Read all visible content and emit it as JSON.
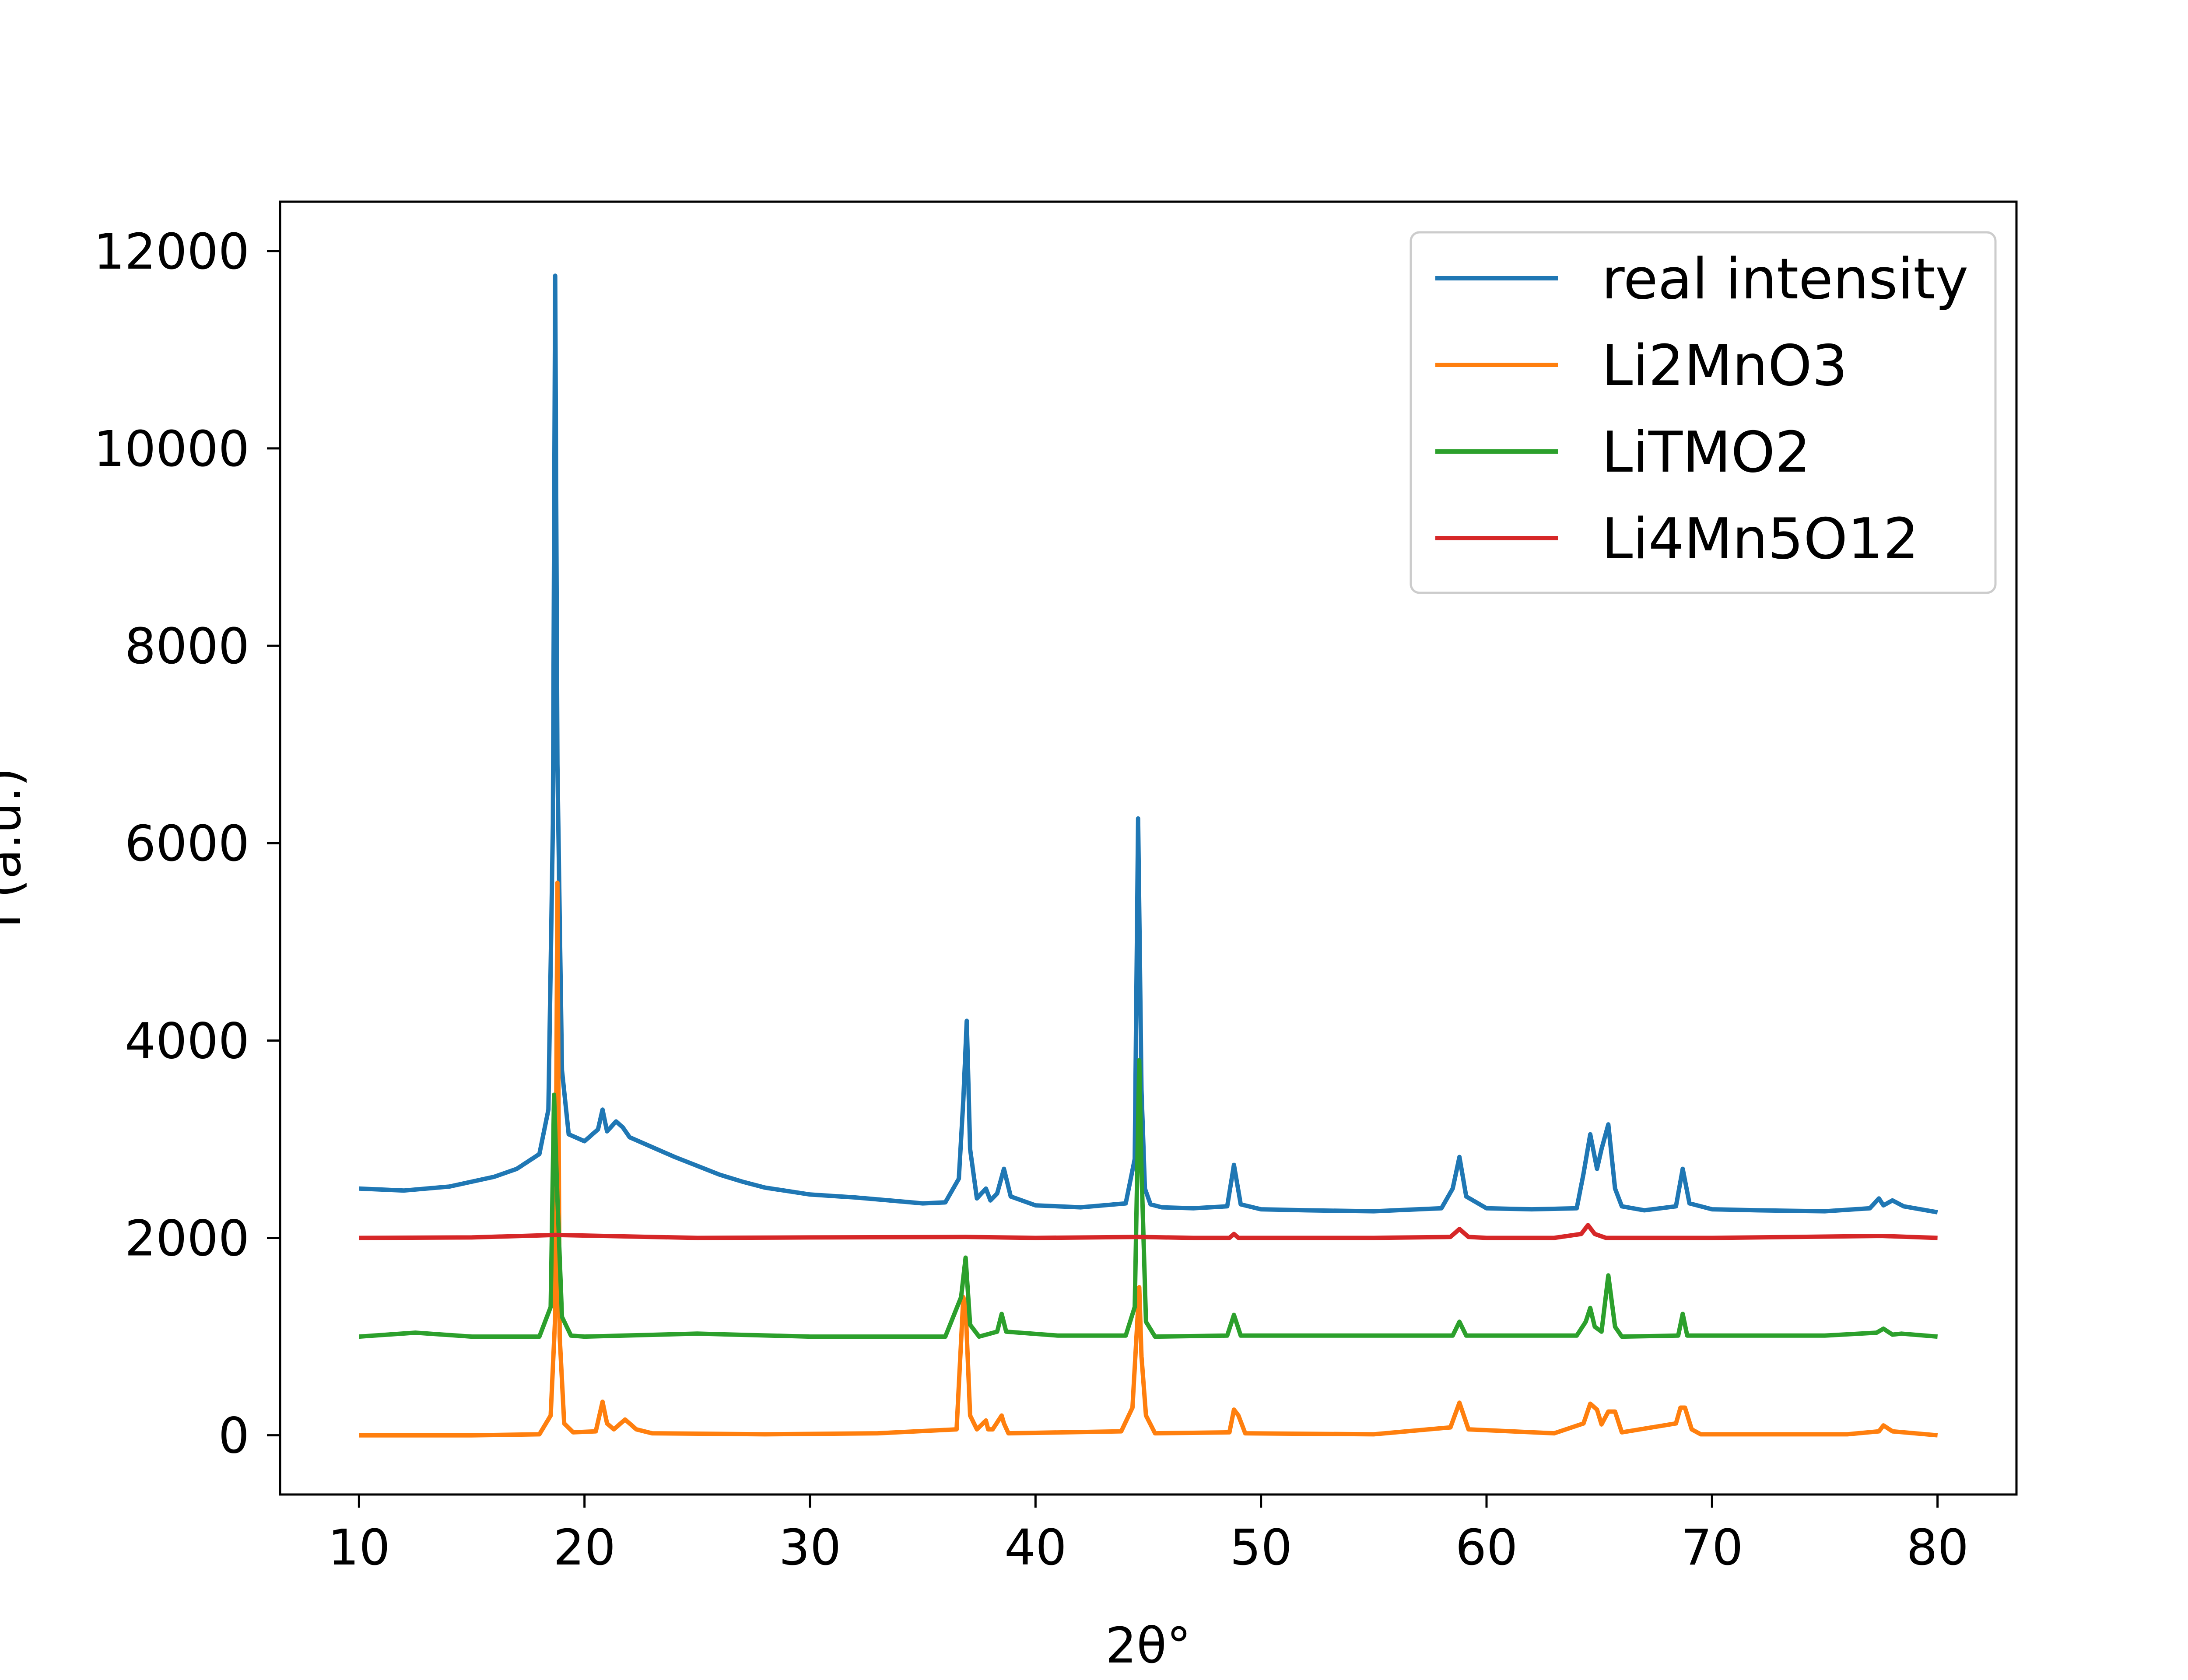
{
  "chart_data": {
    "type": "line",
    "title": "",
    "xlabel": "2θ°",
    "ylabel": "I (a.u.)",
    "xlim": [
      6.5,
      83.5
    ],
    "ylim": [
      -600,
      12500
    ],
    "xticks": [
      10,
      20,
      30,
      40,
      50,
      60,
      70,
      80
    ],
    "yticks": [
      0,
      2000,
      4000,
      6000,
      8000,
      10000,
      12000
    ],
    "xtick_labels": [
      "10",
      "20",
      "30",
      "40",
      "50",
      "60",
      "70",
      "80"
    ],
    "ytick_labels": [
      "0",
      "2000",
      "4000",
      "6000",
      "8000",
      "10000",
      "12000"
    ],
    "grid": false,
    "legend_position": "top-right",
    "series": [
      {
        "name": "real intensity",
        "color": "#1f77b4",
        "x": [
          10,
          12,
          14,
          16,
          17,
          18,
          18.4,
          18.6,
          18.7,
          18.8,
          19.0,
          19.3,
          20.0,
          20.6,
          20.8,
          21.0,
          21.4,
          21.7,
          22.0,
          23,
          24,
          25,
          26,
          27,
          28,
          30,
          32,
          34,
          35,
          36,
          36.6,
          36.8,
          36.95,
          37.1,
          37.4,
          37.8,
          38.0,
          38.3,
          38.6,
          38.9,
          40,
          42,
          44,
          44.4,
          44.55,
          44.7,
          44.85,
          45.1,
          45.6,
          47,
          48.5,
          48.8,
          49.1,
          50,
          52,
          55,
          58,
          58.5,
          58.8,
          59.1,
          60,
          62,
          64,
          64.3,
          64.6,
          64.9,
          65.1,
          65.4,
          65.7,
          66,
          67,
          68.4,
          68.7,
          69.0,
          70,
          72,
          75,
          77,
          77.4,
          77.6,
          78.0,
          78.5,
          80
        ],
        "values": [
          2500,
          2480,
          2520,
          2620,
          2700,
          2850,
          3300,
          6200,
          11750,
          6800,
          3700,
          3050,
          2980,
          3100,
          3300,
          3080,
          3180,
          3120,
          3020,
          2920,
          2820,
          2730,
          2640,
          2570,
          2510,
          2440,
          2410,
          2370,
          2350,
          2360,
          2600,
          3400,
          4200,
          2900,
          2400,
          2500,
          2380,
          2450,
          2700,
          2420,
          2330,
          2310,
          2350,
          2800,
          6250,
          3500,
          2500,
          2340,
          2310,
          2300,
          2320,
          2740,
          2340,
          2290,
          2280,
          2270,
          2300,
          2500,
          2820,
          2420,
          2300,
          2290,
          2300,
          2650,
          3050,
          2700,
          2900,
          3150,
          2500,
          2320,
          2280,
          2320,
          2700,
          2350,
          2290,
          2280,
          2270,
          2300,
          2400,
          2330,
          2380,
          2320,
          2260
        ]
      },
      {
        "name": "Li2MnO3",
        "color": "#ff7f0e",
        "x": [
          10,
          15,
          18,
          18.5,
          18.7,
          18.8,
          18.9,
          19.1,
          19.5,
          20.5,
          20.8,
          21.0,
          21.3,
          21.8,
          22.3,
          23,
          28,
          33,
          36.5,
          36.8,
          36.9,
          37.1,
          37.4,
          37.8,
          37.9,
          38.1,
          38.5,
          38.6,
          38.8,
          43.8,
          44.3,
          44.6,
          44.7,
          44.9,
          45.3,
          48.6,
          48.8,
          49.0,
          49.3,
          55,
          58.4,
          58.8,
          59.2,
          63,
          64.3,
          64.6,
          64.9,
          65.1,
          65.4,
          65.7,
          66,
          68.4,
          68.6,
          68.8,
          69.1,
          69.5,
          76,
          77.4,
          77.6,
          78.0,
          80
        ],
        "values": [
          0,
          0,
          10,
          200,
          1200,
          5600,
          1000,
          120,
          30,
          40,
          340,
          120,
          60,
          160,
          60,
          20,
          10,
          20,
          60,
          1400,
          1300,
          200,
          60,
          150,
          60,
          60,
          200,
          120,
          20,
          40,
          280,
          1500,
          800,
          200,
          20,
          30,
          260,
          200,
          20,
          10,
          80,
          330,
          60,
          20,
          120,
          320,
          260,
          110,
          240,
          240,
          30,
          120,
          280,
          280,
          60,
          10,
          10,
          40,
          100,
          40,
          0
        ]
      },
      {
        "name": "LiTMO2",
        "color": "#2ca02c",
        "x": [
          10,
          12.5,
          15,
          18,
          18.5,
          18.65,
          18.8,
          19.0,
          19.4,
          20,
          25,
          30,
          36,
          36.7,
          36.9,
          37.1,
          37.5,
          38.3,
          38.5,
          38.7,
          41,
          44.0,
          44.4,
          44.6,
          44.7,
          44.9,
          45.3,
          48.5,
          48.8,
          49.1,
          53.5,
          58.5,
          58.8,
          59.1,
          64.0,
          64.4,
          64.6,
          64.8,
          65.1,
          65.4,
          65.7,
          66,
          68.5,
          68.7,
          68.9,
          75,
          77.3,
          77.6,
          78.0,
          78.4,
          80
        ],
        "values": [
          1000,
          1040,
          1000,
          1000,
          1300,
          3450,
          2400,
          1200,
          1010,
          1000,
          1030,
          1000,
          1000,
          1400,
          1800,
          1120,
          1000,
          1050,
          1230,
          1050,
          1010,
          1010,
          1300,
          3800,
          2700,
          1150,
          1000,
          1010,
          1220,
          1010,
          1010,
          1010,
          1150,
          1010,
          1010,
          1150,
          1290,
          1100,
          1050,
          1620,
          1100,
          1000,
          1010,
          1230,
          1010,
          1010,
          1040,
          1080,
          1020,
          1030,
          1000
        ]
      },
      {
        "name": "Li4Mn5O12",
        "color": "#d62728",
        "x": [
          10,
          15,
          18.7,
          25,
          30,
          36.9,
          40,
          44.6,
          47,
          48.6,
          48.8,
          49.0,
          55,
          58.4,
          58.8,
          59.2,
          60,
          63,
          64.2,
          64.5,
          64.8,
          65.3,
          70,
          77.5,
          80
        ],
        "values": [
          2000,
          2005,
          2030,
          2000,
          2005,
          2010,
          2000,
          2010,
          2000,
          2000,
          2040,
          2000,
          2000,
          2010,
          2090,
          2010,
          2000,
          2000,
          2040,
          2130,
          2040,
          2000,
          2000,
          2020,
          2000
        ]
      }
    ]
  }
}
